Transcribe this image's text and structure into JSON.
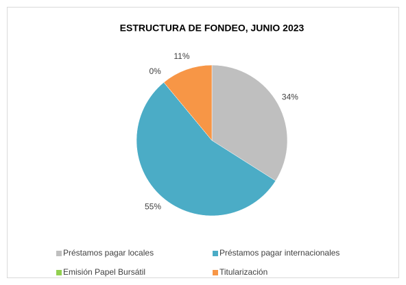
{
  "chart_data": {
    "type": "pie",
    "title": "ESTRUCTURA DE FONDEO, JUNIO 2023",
    "categories": [
      "Préstamos pagar locales",
      "Préstamos pagar internacionales",
      "Emisión Papel Bursátil",
      "Titularización"
    ],
    "values": [
      34,
      55,
      0,
      11
    ],
    "value_labels": [
      "34%",
      "55%",
      "0%",
      "11%"
    ],
    "colors": [
      "#bfbfbf",
      "#4bacc6",
      "#92d050",
      "#f79646"
    ]
  }
}
